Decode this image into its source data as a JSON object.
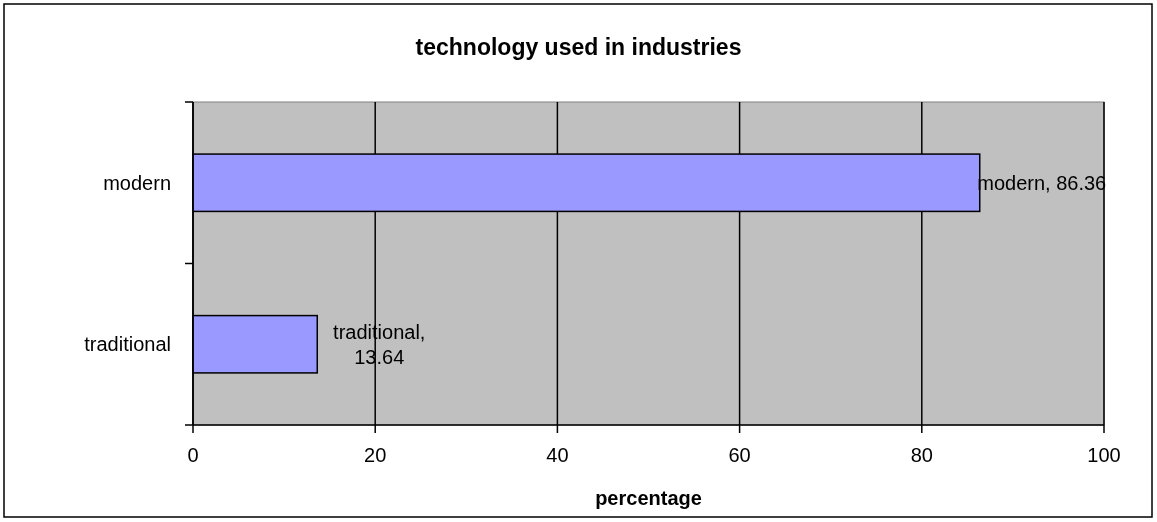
{
  "chart_data": {
    "type": "bar",
    "orientation": "horizontal",
    "title": "technology used in industries",
    "xlabel": "percentage",
    "categories": [
      "modern",
      "traditional"
    ],
    "values": [
      86.36,
      13.64
    ],
    "value_labels": [
      "modern, 86.36",
      "traditional, 13.64"
    ],
    "color": "#9999ff",
    "xlim": [
      0,
      100
    ],
    "xticks": [
      0,
      20,
      40,
      60,
      80,
      100
    ],
    "grid": "x"
  }
}
